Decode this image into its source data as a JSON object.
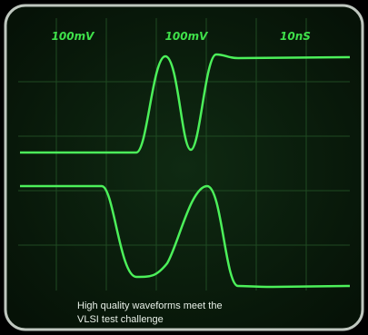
{
  "screen": {
    "labels": [
      "100mV",
      "100mV",
      "10nS"
    ],
    "caption": [
      "High quality waveforms meet the",
      "VLSI test challenge"
    ]
  }
}
